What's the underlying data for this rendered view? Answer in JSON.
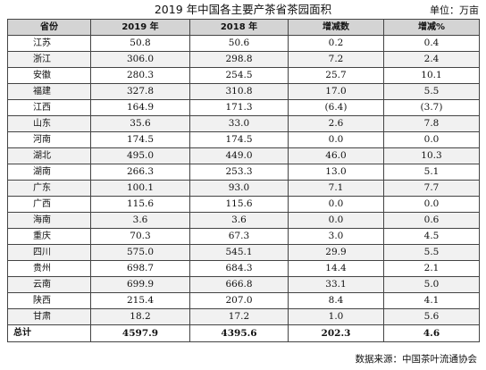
{
  "title": "2019 年中国各主要产茶省茶园面积",
  "unit": "单位：万亩",
  "table": {
    "headers": [
      "省份",
      "2019 年",
      "2018 年",
      "增减数",
      "增减%"
    ],
    "rows": [
      [
        "江苏",
        "50.8",
        "50.6",
        "0.2",
        "0.4"
      ],
      [
        "浙江",
        "306.0",
        "298.8",
        "7.2",
        "2.4"
      ],
      [
        "安徽",
        "280.3",
        "254.5",
        "25.7",
        "10.1"
      ],
      [
        "福建",
        "327.8",
        "310.8",
        "17.0",
        "5.5"
      ],
      [
        "江西",
        "164.9",
        "171.3",
        "(6.4)",
        "(3.7)"
      ],
      [
        "山东",
        "35.6",
        "33.0",
        "2.6",
        "7.8"
      ],
      [
        "河南",
        "174.5",
        "174.5",
        "0.0",
        "0.0"
      ],
      [
        "湖北",
        "495.0",
        "449.0",
        "46.0",
        "10.3"
      ],
      [
        "湖南",
        "266.3",
        "253.3",
        "13.0",
        "5.1"
      ],
      [
        "广东",
        "100.1",
        "93.0",
        "7.1",
        "7.7"
      ],
      [
        "广西",
        "115.6",
        "115.6",
        "0.0",
        "0.0"
      ],
      [
        "海南",
        "3.6",
        "3.6",
        "0.0",
        "0.6"
      ],
      [
        "重庆",
        "70.3",
        "67.3",
        "3.0",
        "4.5"
      ],
      [
        "四川",
        "575.0",
        "545.1",
        "29.9",
        "5.5"
      ],
      [
        "贵州",
        "698.7",
        "684.3",
        "14.4",
        "2.1"
      ],
      [
        "云南",
        "699.9",
        "666.8",
        "33.1",
        "5.0"
      ],
      [
        "陕西",
        "215.4",
        "207.0",
        "8.4",
        "4.1"
      ],
      [
        "甘肃",
        "18.2",
        "17.2",
        "1.0",
        "5.6"
      ]
    ],
    "total": [
      "总计",
      "4597.9",
      "4395.6",
      "202.3",
      "4.6"
    ]
  },
  "source": "数据来源：中国茶叶流通协会"
}
